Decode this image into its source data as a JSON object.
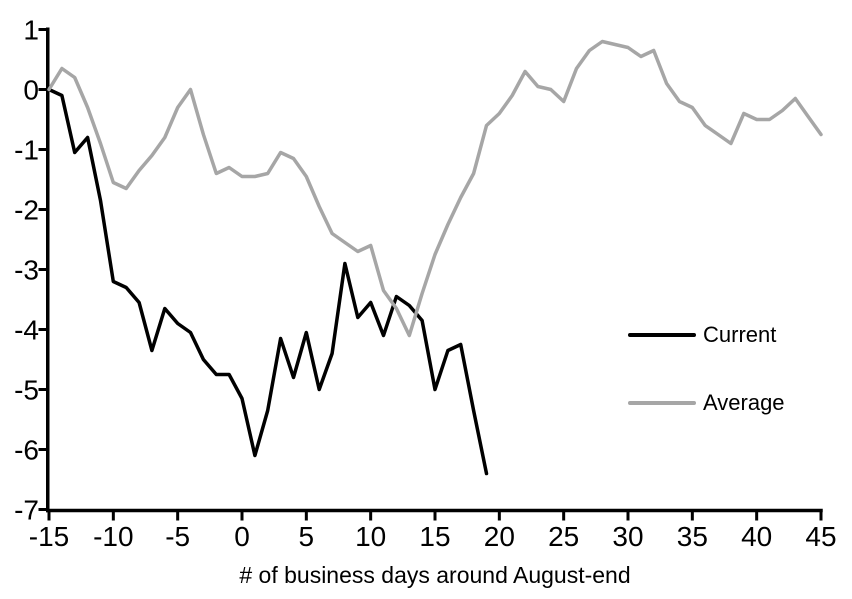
{
  "chart_data": {
    "type": "line",
    "title": "",
    "xlabel": "# of business days around August-end",
    "ylabel": "",
    "xlim": [
      -15,
      45
    ],
    "ylim": [
      -7,
      1
    ],
    "x_ticks": [
      -15,
      -10,
      -5,
      0,
      5,
      10,
      15,
      20,
      25,
      30,
      35,
      40,
      45
    ],
    "y_ticks": [
      1,
      0,
      -1,
      -2,
      -3,
      -4,
      -5,
      -6,
      -7
    ],
    "grid": false,
    "legend_position": "right-middle",
    "colors": {
      "current": "#000000",
      "average": "#a6a6a6",
      "axis": "#000000",
      "background": "#ffffff"
    },
    "series": [
      {
        "name": "Current",
        "color_key": "current",
        "x_start": -15,
        "x_step": 1,
        "values": [
          0.0,
          -0.1,
          -1.05,
          -0.8,
          -1.85,
          -3.2,
          -3.3,
          -3.55,
          -4.35,
          -3.65,
          -3.9,
          -4.05,
          -4.5,
          -4.75,
          -4.75,
          -5.15,
          -6.1,
          -5.35,
          -4.15,
          -4.8,
          -4.05,
          -5.0,
          -4.4,
          -2.9,
          -3.8,
          -3.55,
          -4.1,
          -3.45,
          -3.6,
          -3.85,
          -5.0,
          -4.35,
          -4.25,
          -5.35,
          -6.4
        ]
      },
      {
        "name": "Average",
        "color_key": "average",
        "x_start": -15,
        "x_step": 1,
        "values": [
          0.0,
          0.35,
          0.2,
          -0.3,
          -0.9,
          -1.55,
          -1.65,
          -1.35,
          -1.1,
          -0.8,
          -0.3,
          0.0,
          -0.75,
          -1.4,
          -1.3,
          -1.45,
          -1.45,
          -1.4,
          -1.05,
          -1.15,
          -1.45,
          -1.95,
          -2.4,
          -2.55,
          -2.7,
          -2.6,
          -3.35,
          -3.65,
          -4.1,
          -3.4,
          -2.75,
          -2.25,
          -1.8,
          -1.4,
          -0.6,
          -0.4,
          -0.1,
          0.3,
          0.05,
          0.0,
          -0.2,
          0.35,
          0.65,
          0.8,
          0.75,
          0.7,
          0.55,
          0.65,
          0.1,
          -0.2,
          -0.3,
          -0.6,
          -0.75,
          -0.9,
          -0.4,
          -0.5,
          -0.5,
          -0.35,
          -0.15,
          -0.45,
          -0.75
        ]
      }
    ]
  }
}
